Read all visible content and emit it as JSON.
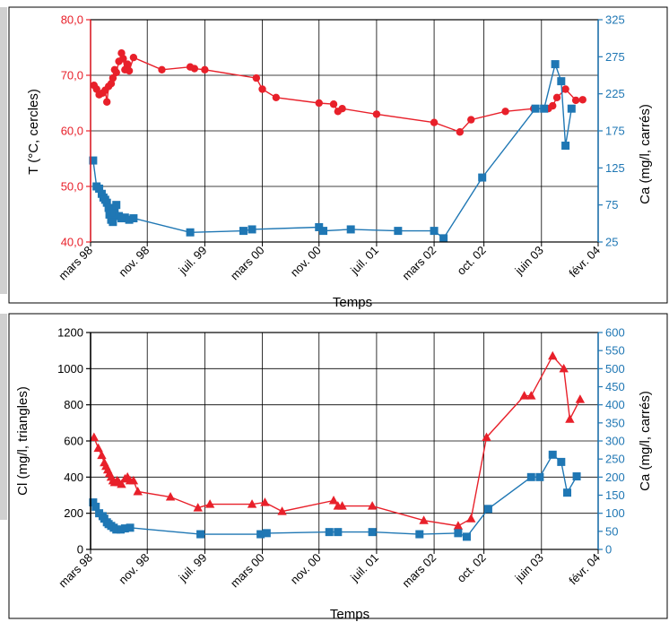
{
  "chart_data": [
    {
      "type": "line",
      "xlabel": "Temps",
      "ylabel_left": "T (°C, cercles)",
      "ylabel_right": "Ca (mg/l, carrés)",
      "x_tick_labels": [
        "mars 98",
        "nov. 98",
        "juil. 99",
        "mars 00",
        "nov. 00",
        "juil. 01",
        "mars 02",
        "oct. 02",
        "juin 03",
        "févr. 04"
      ],
      "x_ticks_years": [
        1998.17,
        1998.83,
        1999.5,
        2000.17,
        2000.83,
        2001.5,
        2002.17,
        2002.75,
        2003.42,
        2004.08
      ],
      "xlim": [
        1998.17,
        2004.08
      ],
      "ylim_left": [
        40,
        80
      ],
      "ylim_right": [
        25,
        325
      ],
      "left_ticks": [
        40,
        50,
        60,
        70,
        80
      ],
      "left_tick_labels": [
        "40,0",
        "50,0",
        "60,0",
        "70,0",
        "80,0"
      ],
      "right_ticks": [
        25,
        75,
        125,
        175,
        225,
        275,
        325
      ],
      "right_tick_labels": [
        "25",
        "75",
        "125",
        "175",
        "225",
        "275",
        "325"
      ],
      "grid": true,
      "colors": {
        "left": "#e8202a",
        "right": "#1f77b4",
        "left_axis": "#e8202a",
        "right_axis": "#1f77b4"
      },
      "series": [
        {
          "axis": "left",
          "marker": "circle",
          "x": [
            1998.21,
            1998.24,
            1998.27,
            1998.31,
            1998.34,
            1998.36,
            1998.38,
            1998.41,
            1998.43,
            1998.45,
            1998.47,
            1998.5,
            1998.53,
            1998.55,
            1998.57,
            1998.6,
            1998.62,
            1998.67,
            1999.0,
            1999.33,
            1999.38,
            1999.5,
            2000.1,
            2000.17,
            2000.33,
            2000.83,
            2001.0,
            2001.05,
            2001.1,
            2001.5,
            2002.17,
            2002.47,
            2002.6,
            2003.0,
            2003.33,
            2003.5,
            2003.55,
            2003.6,
            2003.7,
            2003.82,
            2003.9
          ],
          "y": [
            68.2,
            67.5,
            66.5,
            66.8,
            67.3,
            65.2,
            68.0,
            68.5,
            69.5,
            71.0,
            70.5,
            72.5,
            74.0,
            73.0,
            71.0,
            72.0,
            70.8,
            73.2,
            71.0,
            71.5,
            71.2,
            71.0,
            69.5,
            67.5,
            66.0,
            65.0,
            64.8,
            63.5,
            64.0,
            63.0,
            61.5,
            59.8,
            62.0,
            63.5,
            64.0,
            64.0,
            64.5,
            66.0,
            67.5,
            65.5,
            65.6
          ]
        },
        {
          "axis": "right",
          "marker": "square",
          "x": [
            1998.2,
            1998.24,
            1998.27,
            1998.3,
            1998.32,
            1998.34,
            1998.36,
            1998.38,
            1998.39,
            1998.41,
            1998.43,
            1998.45,
            1998.47,
            1998.5,
            1998.53,
            1998.57,
            1998.62,
            1998.67,
            1999.33,
            1999.95,
            2000.05,
            2000.83,
            2000.88,
            2001.2,
            2001.75,
            2002.17,
            2002.28,
            2002.73,
            2003.35,
            2003.45,
            2003.58,
            2003.65,
            2003.7,
            2003.77
          ],
          "y": [
            135,
            100,
            97,
            90,
            85,
            82,
            78,
            71,
            62,
            55,
            52,
            65,
            75,
            60,
            57,
            58,
            55,
            57,
            38,
            40,
            42,
            45,
            40,
            42,
            40,
            40,
            30,
            112,
            205,
            205,
            265,
            242,
            155,
            205
          ]
        }
      ]
    },
    {
      "type": "line",
      "xlabel": "Temps",
      "ylabel_left": "Cl (mg/l, triangles)",
      "ylabel_right": "Ca (mg/l, carrés)",
      "x_tick_labels": [
        "mars 98",
        "nov. 98",
        "juil. 99",
        "mars 00",
        "nov. 00",
        "juil. 01",
        "mars 02",
        "oct. 02",
        "juin 03",
        "févr. 04"
      ],
      "x_ticks_years": [
        1998.17,
        1998.83,
        1999.5,
        2000.17,
        2000.83,
        2001.5,
        2002.17,
        2002.75,
        2003.42,
        2004.08
      ],
      "xlim": [
        1998.17,
        2004.08
      ],
      "ylim_left": [
        0,
        1200
      ],
      "ylim_right": [
        0,
        600
      ],
      "left_ticks": [
        0,
        200,
        400,
        600,
        800,
        1000,
        1200
      ],
      "left_tick_labels": [
        "0",
        "200",
        "400",
        "600",
        "800",
        "1000",
        "1200"
      ],
      "right_ticks": [
        0,
        50,
        100,
        150,
        200,
        250,
        300,
        350,
        400,
        450,
        500,
        550,
        600
      ],
      "right_tick_labels": [
        "0",
        "50",
        "100",
        "150",
        "200",
        "250",
        "300",
        "350",
        "400",
        "450",
        "500",
        "550",
        "600"
      ],
      "grid": true,
      "colors": {
        "left": "#e8202a",
        "right": "#1f77b4",
        "left_axis": "#000000",
        "right_axis": "#1f77b4"
      },
      "series": [
        {
          "axis": "left",
          "marker": "triangle",
          "x": [
            1998.21,
            1998.26,
            1998.3,
            1998.33,
            1998.35,
            1998.37,
            1998.39,
            1998.41,
            1998.43,
            1998.45,
            1998.48,
            1998.5,
            1998.53,
            1998.57,
            1998.6,
            1998.63,
            1998.67,
            1998.72,
            1999.1,
            1999.42,
            1999.56,
            2000.05,
            2000.2,
            2000.4,
            2001.0,
            2001.05,
            2001.1,
            2001.45,
            2002.05,
            2002.45,
            2002.6,
            2002.78,
            2003.22,
            2003.3,
            2003.55,
            2003.68,
            2003.75,
            2003.87
          ],
          "y": [
            620,
            560,
            520,
            480,
            460,
            440,
            420,
            400,
            380,
            370,
            380,
            370,
            360,
            390,
            400,
            380,
            380,
            320,
            290,
            230,
            250,
            250,
            260,
            210,
            270,
            240,
            240,
            240,
            160,
            130,
            170,
            620,
            850,
            850,
            1070,
            1000,
            720,
            830
          ]
        },
        {
          "axis": "right",
          "marker": "square",
          "x": [
            1998.2,
            1998.23,
            1998.27,
            1998.31,
            1998.33,
            1998.36,
            1998.38,
            1998.41,
            1998.44,
            1998.47,
            1998.52,
            1998.57,
            1998.63,
            1999.45,
            2000.15,
            2000.22,
            2000.95,
            2001.05,
            2001.45,
            2002.0,
            2002.45,
            2002.55,
            2002.8,
            2003.3,
            2003.4,
            2003.55,
            2003.65,
            2003.72,
            2003.83
          ],
          "y": [
            130,
            118,
            100,
            92,
            85,
            75,
            70,
            65,
            60,
            55,
            55,
            58,
            60,
            42,
            42,
            45,
            48,
            48,
            48,
            42,
            45,
            35,
            112,
            200,
            200,
            262,
            242,
            157,
            202
          ]
        }
      ]
    }
  ]
}
